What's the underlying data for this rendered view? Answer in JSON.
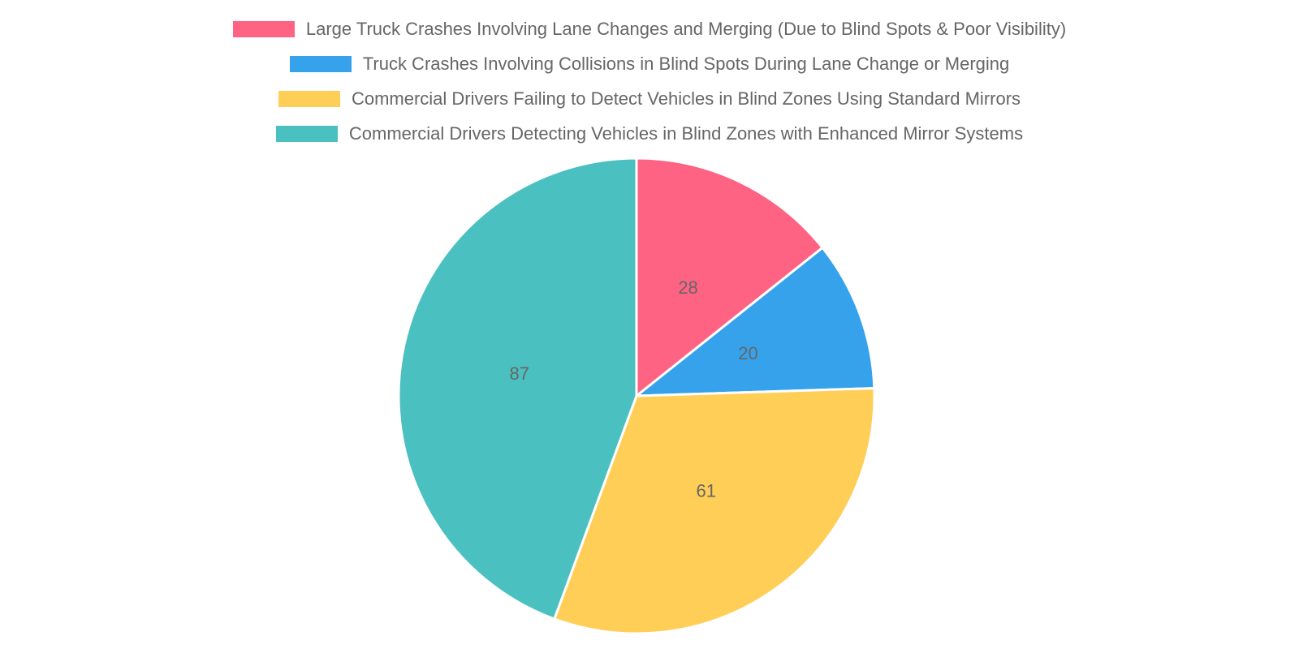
{
  "chart_data": {
    "type": "pie",
    "legend_position": "top",
    "series": [
      {
        "name": "Large Truck Crashes Involving Lane Changes and Merging (Due to Blind Spots & Poor Visibility)",
        "value": 28,
        "color": "#ff6384"
      },
      {
        "name": "Truck Crashes Involving Collisions in Blind Spots During Lane Change or Merging",
        "value": 20,
        "color": "#36a2eb"
      },
      {
        "name": "Commercial Drivers Failing to Detect Vehicles in Blind Zones Using Standard Mirrors",
        "value": 61,
        "color": "#ffce56"
      },
      {
        "name": "Commercial Drivers Detecting Vehicles in Blind Zones with Enhanced Mirror Systems",
        "value": 87,
        "color": "#4bc0c0"
      }
    ],
    "slice_labels": [
      "28",
      "20",
      "61",
      "87"
    ]
  }
}
